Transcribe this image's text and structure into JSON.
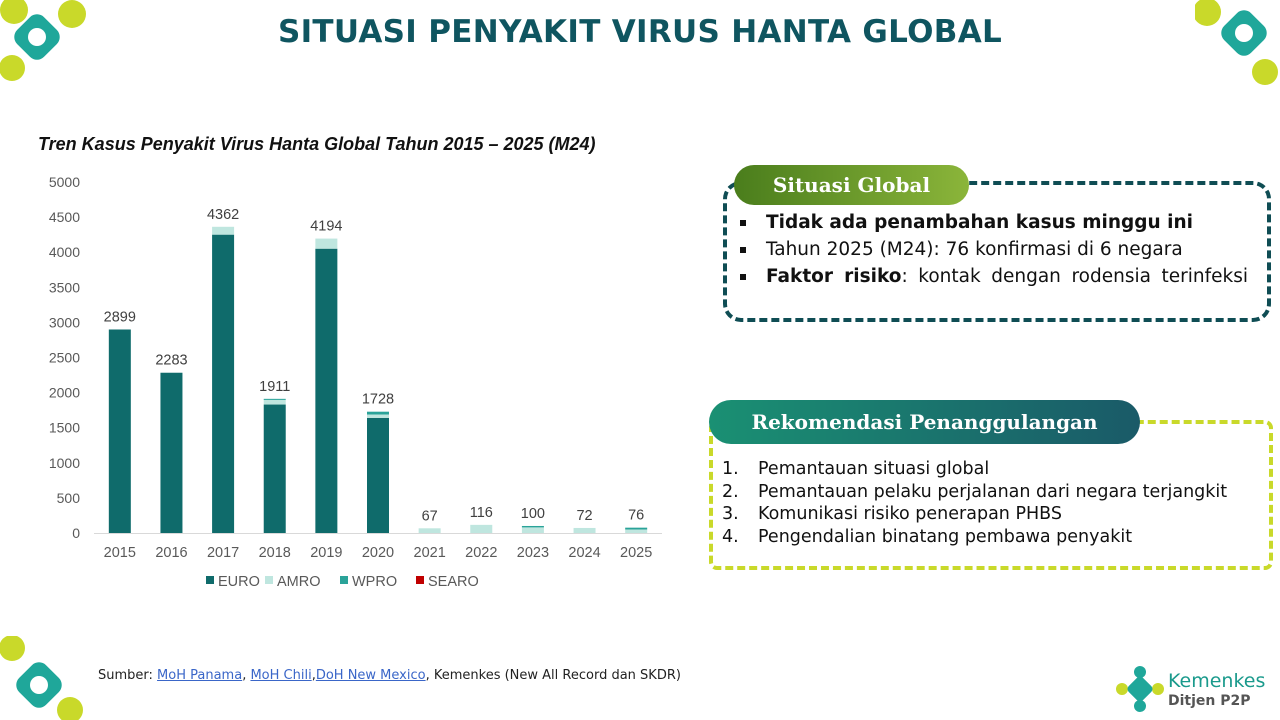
{
  "title": "SITUASI PENYAKIT VIRUS HANTA GLOBAL",
  "colors": {
    "teal_dark": "#0f6b6b",
    "teal_light": "#bfe6df",
    "teal_mid": "#2aa399",
    "red": "#c00000",
    "lime": "#c9d92a"
  },
  "chart_data": {
    "type": "bar",
    "stacked": true,
    "title": "Tren Kasus Penyakit Virus Hanta Global Tahun 2015 – 2025 (M24)",
    "categories": [
      "2015",
      "2016",
      "2017",
      "2018",
      "2019",
      "2020",
      "2021",
      "2022",
      "2023",
      "2024",
      "2025"
    ],
    "totals": [
      2899,
      2283,
      4362,
      1911,
      4194,
      1728,
      67,
      116,
      100,
      72,
      76
    ],
    "series": [
      {
        "name": "EURO",
        "color": "#0f6b6b",
        "values": [
          2899,
          2283,
          4250,
          1830,
          4050,
          1640,
          0,
          0,
          0,
          0,
          0
        ]
      },
      {
        "name": "AMRO",
        "color": "#bfe6df",
        "values": [
          0,
          0,
          112,
          66,
          144,
          48,
          67,
          116,
          80,
          72,
          50
        ]
      },
      {
        "name": "WPRO",
        "color": "#2aa399",
        "values": [
          0,
          0,
          0,
          15,
          0,
          40,
          0,
          0,
          20,
          0,
          26
        ]
      },
      {
        "name": "SEARO",
        "color": "#c00000",
        "values": [
          0,
          0,
          0,
          0,
          0,
          0,
          0,
          0,
          0,
          0,
          0
        ]
      }
    ],
    "yticks": [
      0,
      500,
      1000,
      1500,
      2000,
      2500,
      3000,
      3500,
      4000,
      4500,
      5000
    ],
    "ylim": [
      0,
      5000
    ],
    "legend_position": "bottom",
    "grid": false
  },
  "global": {
    "header": "Situasi Global",
    "item1": "Tidak ada penambahan kasus minggu ini",
    "item2": "Tahun 2025 (M24): 76 konfirmasi di 6 negara",
    "item3_bold": "Faktor risiko",
    "item3_rest": ": kontak dengan rodensia terinfeksi"
  },
  "rekomendasi": {
    "header": "Rekomendasi Penanggulangan",
    "items": [
      {
        "num": "1.",
        "text": "Pemantauan situasi global"
      },
      {
        "num": "2.",
        "text": "Pemantauan pelaku perjalanan dari negara terjangkit"
      },
      {
        "num": "3.",
        "text": "Komunikasi risiko penerapan PHBS"
      },
      {
        "num": "4.",
        "text": "Pengendalian binatang pembawa penyakit"
      }
    ]
  },
  "source": {
    "prefix": "Sumber: ",
    "link1": "MoH Panama",
    "sep1": ", ",
    "link2": "MoH Chili",
    "sep2": ",",
    "link3": "DoH New Mexico",
    "suffix": ", Kemenkes (New All Record dan SKDR)"
  },
  "logo": {
    "brand": "Kemenkes",
    "sub": "Ditjen P2P"
  }
}
